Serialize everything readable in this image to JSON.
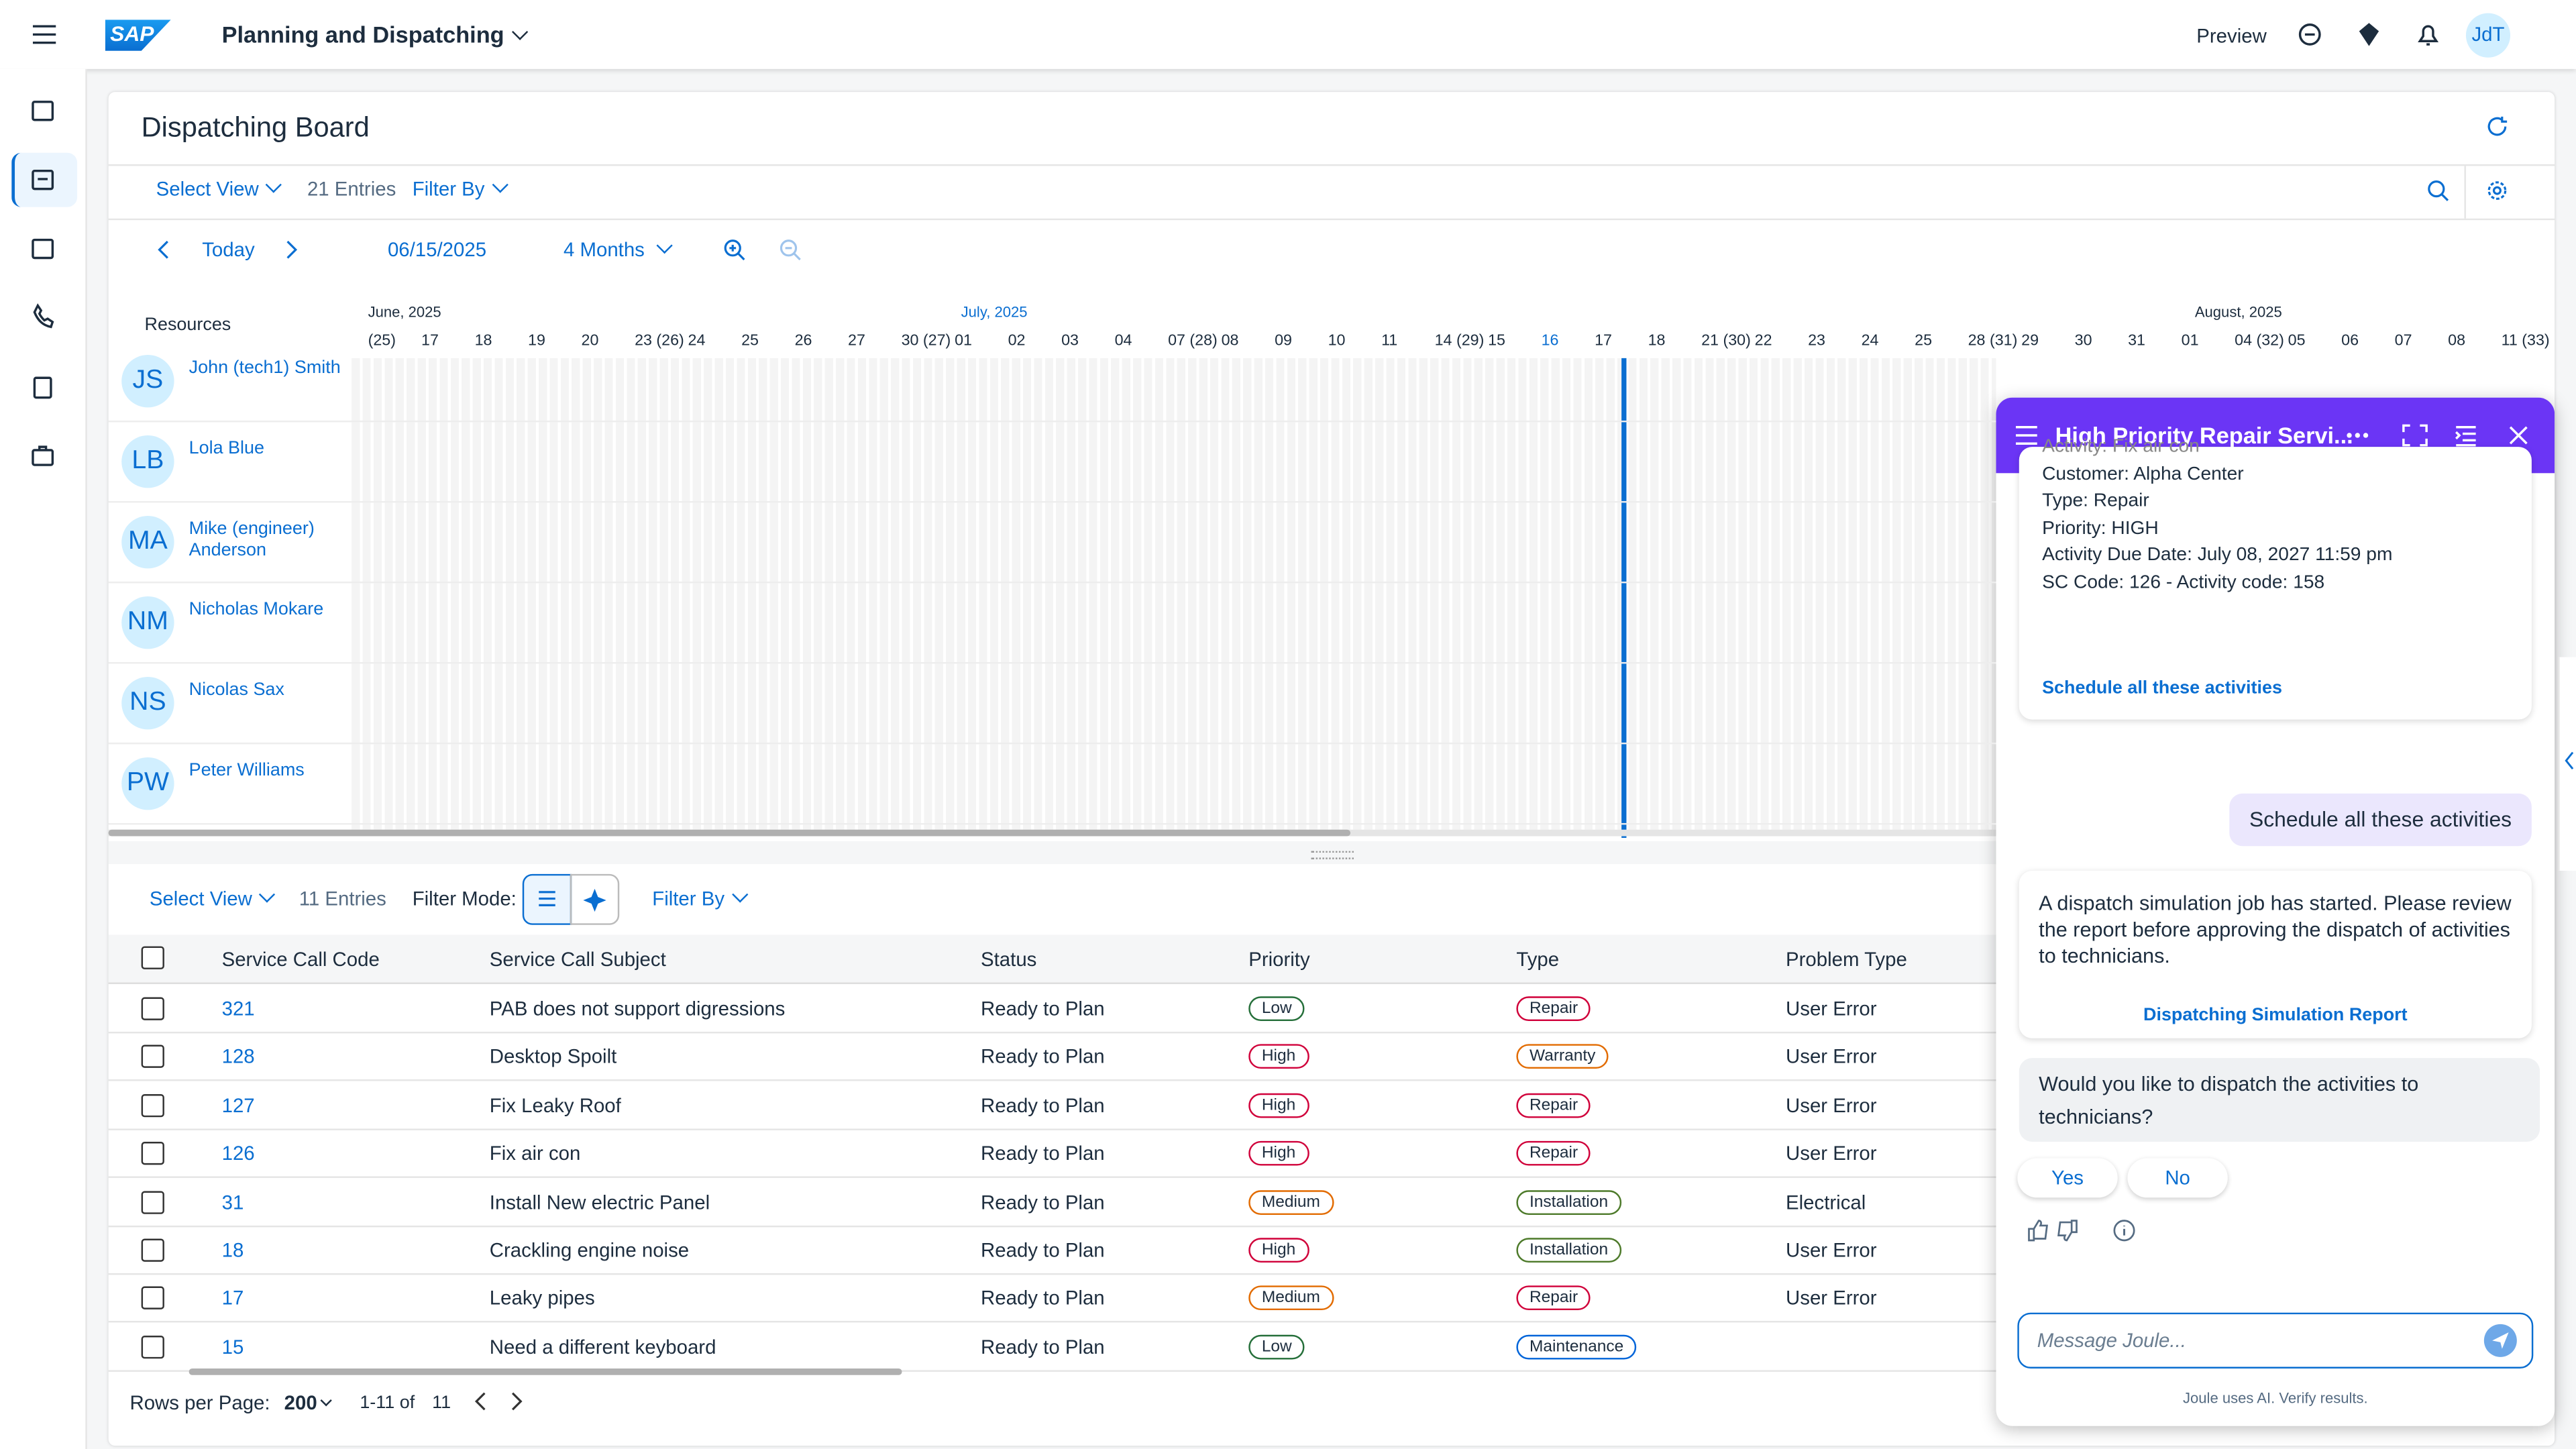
{
  "header": {
    "logo": "SAP",
    "app_title": "Planning and Dispatching",
    "preview": "Preview",
    "user": "JdT"
  },
  "board": {
    "title": "Dispatching Board",
    "select_view": "Select View",
    "entries": "21 Entries",
    "filter_by": "Filter By",
    "today": "Today",
    "date": "06/15/2025",
    "range": "4 Months"
  },
  "gantt": {
    "resources_label": "Resources",
    "months": [
      "June, 2025",
      "July, 2025",
      "August, 2025"
    ],
    "days": [
      "(25)",
      "17",
      "18",
      "19",
      "20",
      "23 (26)",
      "24",
      "25",
      "26",
      "27",
      "30 (27)",
      "01",
      "02",
      "03",
      "04",
      "07 (28)",
      "08",
      "09",
      "10",
      "11",
      "14 (29)",
      "15",
      "16",
      "17",
      "18",
      "21 (30)",
      "22",
      "23",
      "24",
      "25",
      "28 (31)",
      "29",
      "30",
      "31",
      "01",
      "04 (32)",
      "05",
      "06",
      "07",
      "08",
      "11 (33)"
    ],
    "resources": [
      {
        "initials": "JS",
        "name": "John (tech1) Smith"
      },
      {
        "initials": "LB",
        "name": "Lola Blue"
      },
      {
        "initials": "MA",
        "name": "Mike (engineer) Anderson"
      },
      {
        "initials": "NM",
        "name": "Nicholas Mokare"
      },
      {
        "initials": "NS",
        "name": "Nicolas Sax"
      },
      {
        "initials": "PW",
        "name": "Peter Williams"
      }
    ]
  },
  "table": {
    "select_view": "Select View",
    "entries": "11 Entries",
    "filter_mode": "Filter Mode:",
    "filter_by": "Filter By",
    "columns": [
      "Service Call Code",
      "Service Call Subject",
      "Status",
      "Priority",
      "Type",
      "Problem Type"
    ],
    "rows": [
      {
        "code": "321",
        "subject": "PAB does not support digressions",
        "status": "Ready to Plan",
        "priority": {
          "text": "Low",
          "color": "#256f3a"
        },
        "type": {
          "text": "Repair",
          "color": "#d0003a"
        },
        "problem": "User Error"
      },
      {
        "code": "128",
        "subject": "Desktop Spoilt",
        "status": "Ready to Plan",
        "priority": {
          "text": "High",
          "color": "#d0003a"
        },
        "type": {
          "text": "Warranty",
          "color": "#e26b00"
        },
        "problem": "User Error"
      },
      {
        "code": "127",
        "subject": "Fix Leaky Roof",
        "status": "Ready to Plan",
        "priority": {
          "text": "High",
          "color": "#d0003a"
        },
        "type": {
          "text": "Repair",
          "color": "#d0003a"
        },
        "problem": "User Error"
      },
      {
        "code": "126",
        "subject": "Fix air con",
        "status": "Ready to Plan",
        "priority": {
          "text": "High",
          "color": "#d0003a"
        },
        "type": {
          "text": "Repair",
          "color": "#d0003a"
        },
        "problem": "User Error"
      },
      {
        "code": "31",
        "subject": "Install New electric Panel",
        "status": "Ready to Plan",
        "priority": {
          "text": "Medium",
          "color": "#e26b00"
        },
        "type": {
          "text": "Installation",
          "color": "#4d7a2a"
        },
        "problem": "Electrical"
      },
      {
        "code": "18",
        "subject": "Crackling engine noise",
        "status": "Ready to Plan",
        "priority": {
          "text": "High",
          "color": "#d0003a"
        },
        "type": {
          "text": "Installation",
          "color": "#4d7a2a"
        },
        "problem": "User Error"
      },
      {
        "code": "17",
        "subject": "Leaky pipes",
        "status": "Ready to Plan",
        "priority": {
          "text": "Medium",
          "color": "#e26b00"
        },
        "type": {
          "text": "Repair",
          "color": "#d0003a"
        },
        "problem": "User Error"
      },
      {
        "code": "15",
        "subject": "Need a different keyboard",
        "status": "Ready to Plan",
        "priority": {
          "text": "Low",
          "color": "#256f3a"
        },
        "type": {
          "text": "Maintenance",
          "color": "#0064d9"
        },
        "problem": null
      }
    ],
    "rows_per_page_label": "Rows per Page:",
    "rows_per_page": "200",
    "range": "1-11 of",
    "total": "11"
  },
  "joule": {
    "title": "High Priority Repair Servi...",
    "card_lines": [
      "Activity: Fix air con",
      "Customer: Alpha Center",
      "Type: Repair",
      "Priority: HIGH",
      "Activity Due Date: July 08, 2027 11:59 pm",
      "SC Code: 126 - Activity code: 158"
    ],
    "card_link": "Schedule all these activities",
    "user_message": "Schedule all these activities",
    "bot_message": "A dispatch simulation job has started. Please review the report before approving the dispatch of activities to technicians.",
    "bot_link": "Dispatching Simulation Report",
    "question": "Would you like to dispatch the activities to technicians?",
    "yes": "Yes",
    "no": "No",
    "placeholder": "Message Joule...",
    "disclaimer": "Joule uses AI. Verify results."
  }
}
